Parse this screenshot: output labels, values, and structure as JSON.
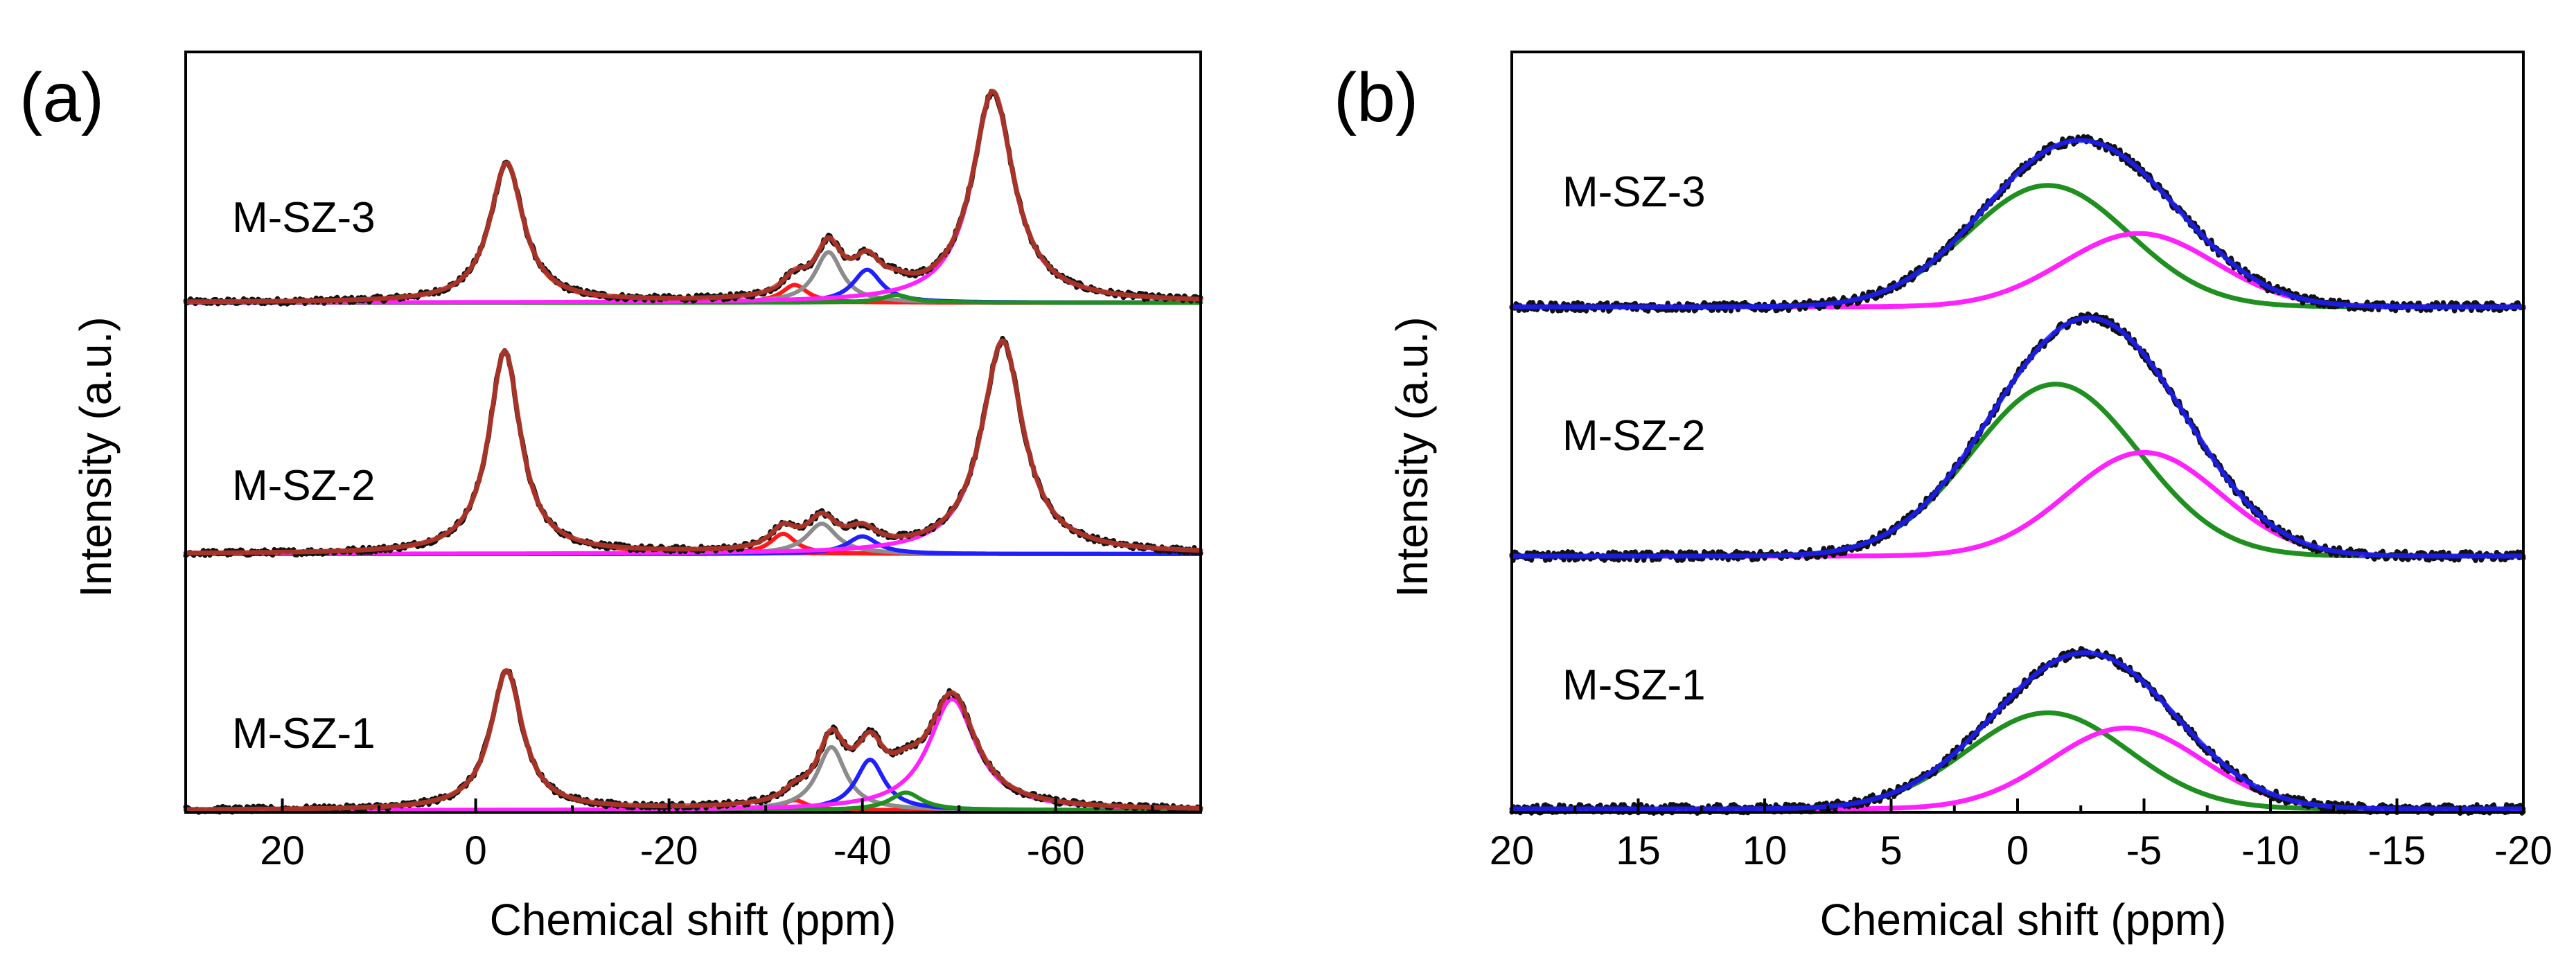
{
  "chart_data": [
    {
      "type": "line",
      "panel_label": "(a)",
      "title": "",
      "xlabel": "Chemical shift (ppm)",
      "ylabel": "Intensity (a.u.)",
      "xlim": [
        30,
        -75
      ],
      "xticks": [
        20,
        0,
        -20,
        -40,
        -60
      ],
      "xtick_labels": [
        "20",
        "0",
        "-20",
        "-40",
        "-60"
      ],
      "grid": false,
      "legend": "none",
      "colors": {
        "experimental": "#111111",
        "fit": "#c0392b",
        "peak_red": "#ff1a1a",
        "peak_gray": "#8c8c8c",
        "peak_blue": "#1f1fff",
        "peak_green": "#1f8f1f",
        "peak_magenta": "#ff22ff"
      },
      "traces": [
        {
          "label": "M-SZ-3",
          "components": [
            {
              "name": "peak-3ppm",
              "color": "peak_red",
              "center": -3.2,
              "width": 2.1,
              "height": 0.55
            },
            {
              "name": "peak-33ppm",
              "color": "peak_red",
              "center": -33.0,
              "width": 1.6,
              "height": 0.07
            },
            {
              "name": "peak-36ppm",
              "color": "peak_gray",
              "center": -36.5,
              "width": 1.7,
              "height": 0.2
            },
            {
              "name": "peak-40ppm",
              "color": "peak_blue",
              "center": -40.5,
              "width": 1.8,
              "height": 0.13
            },
            {
              "name": "peak-43ppm",
              "color": "peak_green",
              "center": -43.5,
              "width": 1.8,
              "height": 0.03
            },
            {
              "name": "peak-53ppm",
              "color": "peak_magenta",
              "center": -53.5,
              "width": 2.6,
              "height": 0.83
            }
          ]
        },
        {
          "label": "M-SZ-2",
          "components": [
            {
              "name": "peak-3ppm",
              "color": "peak_red",
              "center": -3.0,
              "width": 2.0,
              "height": 0.8
            },
            {
              "name": "peak-32ppm",
              "color": "peak_red",
              "center": -31.8,
              "width": 1.6,
              "height": 0.08
            },
            {
              "name": "peak-36ppm",
              "color": "peak_gray",
              "center": -35.8,
              "width": 1.9,
              "height": 0.12
            },
            {
              "name": "peak-40ppm",
              "color": "peak_blue",
              "center": -40.0,
              "width": 1.9,
              "height": 0.07
            },
            {
              "name": "peak-54ppm",
              "color": "peak_magenta",
              "center": -54.5,
              "width": 2.6,
              "height": 0.84
            }
          ]
        },
        {
          "label": "M-SZ-1",
          "components": [
            {
              "name": "peak-3ppm",
              "color": "peak_red",
              "center": -3.2,
              "width": 2.0,
              "height": 0.55
            },
            {
              "name": "peak-33ppm",
              "color": "peak_red",
              "center": -33.0,
              "width": 1.5,
              "height": 0.04
            },
            {
              "name": "peak-37ppm",
              "color": "peak_gray",
              "center": -36.8,
              "width": 1.8,
              "height": 0.25
            },
            {
              "name": "peak-41ppm",
              "color": "peak_blue",
              "center": -40.8,
              "width": 1.8,
              "height": 0.2
            },
            {
              "name": "peak-45ppm",
              "color": "peak_green",
              "center": -44.5,
              "width": 2.0,
              "height": 0.07
            },
            {
              "name": "peak-49ppm",
              "color": "peak_magenta",
              "center": -49.3,
              "width": 3.0,
              "height": 0.44
            }
          ]
        }
      ]
    },
    {
      "type": "line",
      "panel_label": "(b)",
      "title": "",
      "xlabel": "Chemical shift (ppm)",
      "ylabel": "Intensity (a.u.)",
      "xlim": [
        20,
        -20
      ],
      "xticks": [
        20,
        15,
        10,
        5,
        0,
        -5,
        -10,
        -15,
        -20
      ],
      "xtick_labels": [
        "20",
        "15",
        "10",
        "5",
        "0",
        "-5",
        "-10",
        "-15",
        "-20"
      ],
      "grid": false,
      "legend": "none",
      "colors": {
        "experimental": "#111111",
        "fit": "#1f1fff",
        "peak_green": "#1f8f1f",
        "peak_magenta": "#ff22ff"
      },
      "traces": [
        {
          "label": "M-SZ-3",
          "components": [
            {
              "name": "peak-1.2ppm",
              "color": "peak_green",
              "center": -1.2,
              "width": 3.2,
              "height": 0.48
            },
            {
              "name": "peak-4.8ppm",
              "color": "peak_magenta",
              "center": -4.8,
              "width": 3.0,
              "height": 0.29
            }
          ]
        },
        {
          "label": "M-SZ-2",
          "components": [
            {
              "name": "peak-1.5ppm",
              "color": "peak_green",
              "center": -1.5,
              "width": 3.3,
              "height": 0.68
            },
            {
              "name": "peak-5.0ppm",
              "color": "peak_magenta",
              "center": -5.0,
              "width": 3.0,
              "height": 0.41
            }
          ]
        },
        {
          "label": "M-SZ-1",
          "components": [
            {
              "name": "peak-1.2ppm",
              "color": "peak_green",
              "center": -1.2,
              "width": 3.2,
              "height": 0.38
            },
            {
              "name": "peak-4.3ppm",
              "color": "peak_magenta",
              "center": -4.3,
              "width": 3.0,
              "height": 0.32
            }
          ]
        }
      ]
    }
  ]
}
